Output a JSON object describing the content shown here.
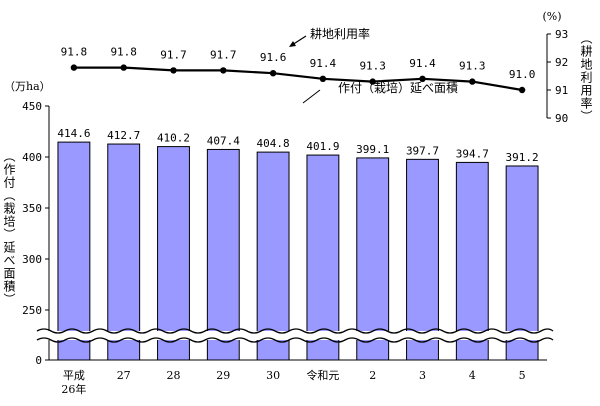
{
  "chart_data": [
    {
      "type": "line",
      "series": [
        {
          "name": "耕地利用率",
          "values": [
            91.8,
            91.8,
            91.7,
            91.7,
            91.6,
            91.4,
            91.3,
            91.4,
            91.3,
            91.0
          ]
        }
      ],
      "unit_label": "(%)",
      "ylabel": "（耕地利用率）",
      "ylim": [
        90,
        93
      ],
      "yticks": [
        "90",
        "91",
        "92",
        "93"
      ],
      "legend_placement": "top-center",
      "color": "#000000"
    },
    {
      "type": "bar",
      "categories": [
        "平成\n26年",
        "27",
        "28",
        "29",
        "30",
        "令和元",
        "2",
        "3",
        "4",
        "5"
      ],
      "series": [
        {
          "name": "作付（栽培）延べ面積",
          "values": [
            414.6,
            412.7,
            410.2,
            407.4,
            404.8,
            401.9,
            399.1,
            397.7,
            394.7,
            391.2
          ]
        }
      ],
      "unit_label": "（万ha）",
      "ylabel": "（作付（栽培）延べ面積）",
      "ylim": [
        200,
        450
      ],
      "axis_break": true,
      "yticks": [
        "0",
        "250",
        "300",
        "350",
        "400",
        "450"
      ],
      "legend_placement": "top-center",
      "bar_color": "#9999FF"
    }
  ]
}
